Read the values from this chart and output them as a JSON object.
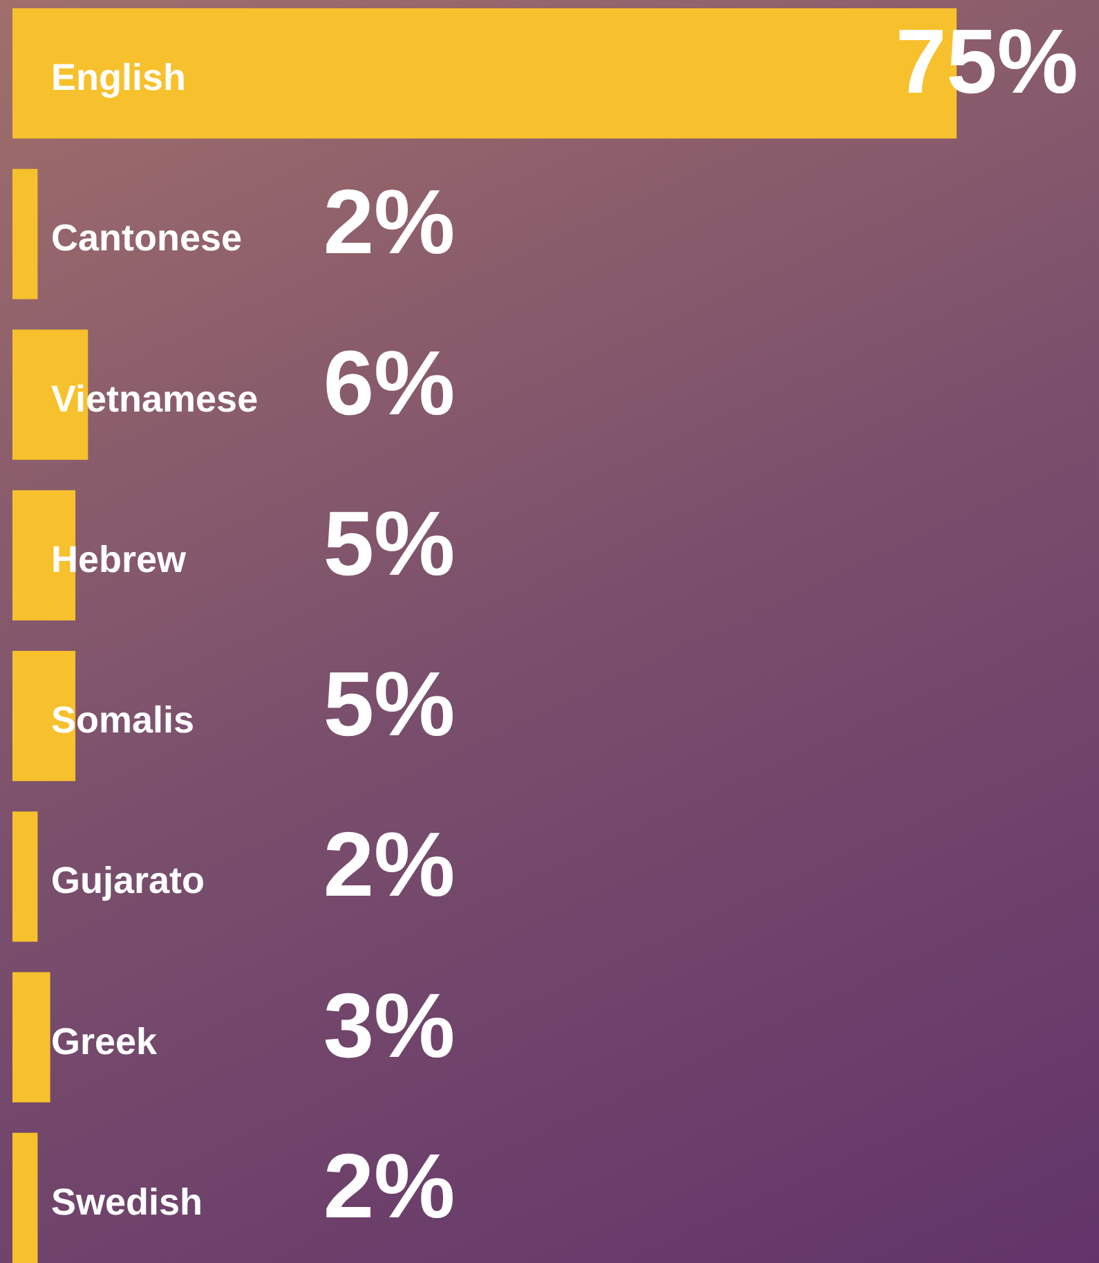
{
  "chart_data": {
    "type": "bar",
    "orientation": "horizontal",
    "categories": [
      "English",
      "Cantonese",
      "Vietnamese",
      "Hebrew",
      "Somalis",
      "Gujarato",
      "Greek",
      "Swedish"
    ],
    "values": [
      75,
      2,
      6,
      5,
      5,
      2,
      3,
      2
    ],
    "value_labels": [
      "75%",
      "2%",
      "6%",
      "5%",
      "5%",
      "2%",
      "3%",
      "2%"
    ],
    "color": "#f7c12d"
  }
}
